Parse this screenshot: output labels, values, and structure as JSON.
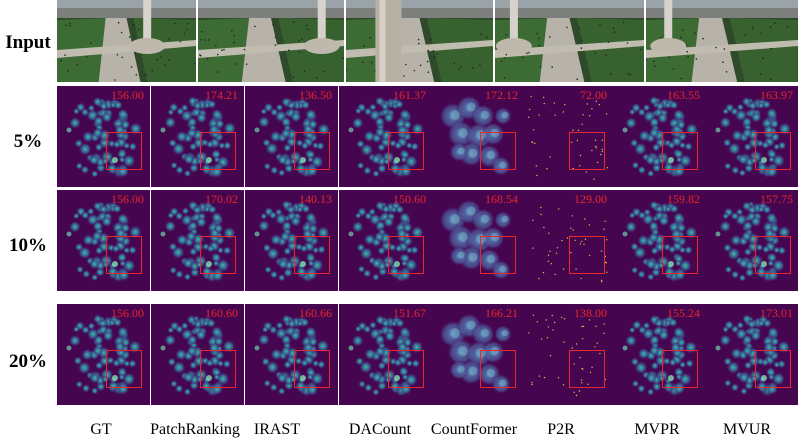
{
  "row_labels": [
    "Input",
    "5%",
    "10%",
    "20%"
  ],
  "methods": [
    "GT",
    "PatchRanking",
    "IRAST",
    "DACount",
    "CountFormer",
    "P2R",
    "MVPR",
    "MVUR"
  ],
  "rows": [
    {
      "label": "5%",
      "counts": [
        "156.00",
        "174.21",
        "136.50",
        "161.37",
        "172.12",
        "72.00",
        "163.55",
        "163.97"
      ]
    },
    {
      "label": "10%",
      "counts": [
        "156.00",
        "170.02",
        "140.13",
        "150.60",
        "168.54",
        "129.00",
        "159.82",
        "157.75"
      ]
    },
    {
      "label": "20%",
      "counts": [
        "156.00",
        "160.60",
        "160.66",
        "151.67",
        "166.21",
        "138.00",
        "155.24",
        "173.01"
      ]
    }
  ],
  "colors": {
    "heatmap_bg": "#46054f",
    "count_text": "#e8262b",
    "roi_box": "#e8262b"
  }
}
